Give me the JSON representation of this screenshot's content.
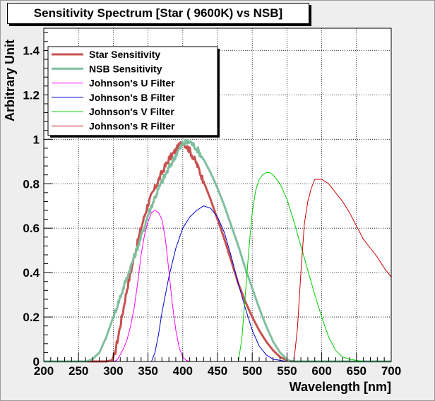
{
  "chart_data": {
    "type": "line",
    "title": "Sensitivity Spectrum [Star ( 9600K) vs NSB]",
    "xlabel": "Wavelength [nm]",
    "ylabel": "Arbitrary Unit",
    "xlim": [
      200,
      700
    ],
    "ylim": [
      0,
      1.5
    ],
    "xticks": [
      200,
      250,
      300,
      350,
      400,
      450,
      500,
      550,
      600,
      650,
      700
    ],
    "yticks": [
      0,
      0.2,
      0.4,
      0.6,
      0.8,
      1,
      1.2,
      1.4
    ],
    "xtick_labels": [
      "200",
      "250",
      "300",
      "350",
      "400",
      "450",
      "500",
      "550",
      "600",
      "650",
      "700"
    ],
    "ytick_labels": [
      "0",
      "0.2",
      "0.4",
      "0.6",
      "0.8",
      "1",
      "1.2",
      "1.4"
    ],
    "grid": true,
    "legend_position": "top-left",
    "series": [
      {
        "name": "Star Sensitivity",
        "color": "#c8504f",
        "x": [
          200,
          290,
          298,
          302,
          310,
          320,
          330,
          340,
          350,
          360,
          370,
          380,
          390,
          400,
          410,
          420,
          430,
          440,
          450,
          460,
          470,
          480,
          490,
          500,
          510,
          520,
          530,
          540,
          550,
          560,
          700
        ],
        "y": [
          0,
          0,
          0.005,
          0.03,
          0.16,
          0.33,
          0.47,
          0.6,
          0.71,
          0.78,
          0.85,
          0.91,
          0.95,
          0.99,
          0.95,
          0.89,
          0.81,
          0.73,
          0.64,
          0.55,
          0.45,
          0.35,
          0.27,
          0.2,
          0.14,
          0.09,
          0.05,
          0.02,
          0.005,
          0,
          0
        ]
      },
      {
        "name": "NSB Sensitivity",
        "color": "#7fbf9f",
        "x": [
          200,
          262,
          270,
          280,
          290,
          300,
          310,
          320,
          330,
          340,
          350,
          360,
          370,
          380,
          390,
          400,
          410,
          420,
          430,
          440,
          450,
          460,
          470,
          480,
          490,
          500,
          510,
          520,
          530,
          540,
          550,
          555,
          700
        ],
        "y": [
          0,
          0,
          0.01,
          0.04,
          0.11,
          0.2,
          0.29,
          0.38,
          0.47,
          0.56,
          0.66,
          0.74,
          0.81,
          0.87,
          0.93,
          0.98,
          0.99,
          0.96,
          0.91,
          0.85,
          0.78,
          0.7,
          0.61,
          0.52,
          0.42,
          0.33,
          0.24,
          0.16,
          0.09,
          0.04,
          0.01,
          0,
          0
        ]
      },
      {
        "name": "Johnson's U Filter",
        "color": "#ff00ff",
        "x": [
          200,
          300,
          305,
          310,
          315,
          320,
          325,
          330,
          335,
          340,
          345,
          350,
          355,
          360,
          365,
          370,
          375,
          380,
          385,
          390,
          395,
          400,
          405,
          410,
          700
        ],
        "y": [
          0,
          0,
          0.005,
          0.03,
          0.06,
          0.1,
          0.16,
          0.24,
          0.35,
          0.48,
          0.57,
          0.63,
          0.67,
          0.68,
          0.67,
          0.64,
          0.55,
          0.41,
          0.26,
          0.14,
          0.06,
          0.02,
          0.005,
          0,
          0
        ]
      },
      {
        "name": "Johnson's B Filter",
        "color": "#0000cc",
        "x": [
          200,
          355,
          360,
          365,
          370,
          380,
          390,
          400,
          410,
          420,
          430,
          440,
          450,
          460,
          470,
          480,
          490,
          500,
          510,
          520,
          530,
          540,
          550,
          700
        ],
        "y": [
          0,
          0,
          0.04,
          0.12,
          0.22,
          0.38,
          0.51,
          0.6,
          0.65,
          0.68,
          0.7,
          0.69,
          0.65,
          0.58,
          0.47,
          0.35,
          0.24,
          0.14,
          0.07,
          0.03,
          0.01,
          0.005,
          0,
          0
        ]
      },
      {
        "name": "Johnson's V Filter",
        "color": "#00cc00",
        "x": [
          200,
          480,
          485,
          490,
          495,
          500,
          505,
          510,
          515,
          520,
          525,
          530,
          540,
          550,
          560,
          570,
          580,
          590,
          600,
          610,
          620,
          630,
          640,
          650,
          660,
          700
        ],
        "y": [
          0,
          0,
          0.1,
          0.3,
          0.5,
          0.67,
          0.77,
          0.82,
          0.84,
          0.85,
          0.85,
          0.84,
          0.8,
          0.73,
          0.63,
          0.52,
          0.41,
          0.3,
          0.2,
          0.11,
          0.05,
          0.02,
          0.01,
          0.005,
          0,
          0
        ]
      },
      {
        "name": "Johnson's R Filter",
        "color": "#cc0000",
        "x": [
          200,
          560,
          565,
          570,
          575,
          580,
          585,
          590,
          600,
          610,
          620,
          630,
          640,
          650,
          660,
          670,
          680,
          690,
          700
        ],
        "y": [
          0,
          0,
          0.15,
          0.4,
          0.62,
          0.72,
          0.78,
          0.82,
          0.82,
          0.8,
          0.76,
          0.72,
          0.67,
          0.61,
          0.55,
          0.51,
          0.47,
          0.42,
          0.38
        ]
      }
    ]
  }
}
